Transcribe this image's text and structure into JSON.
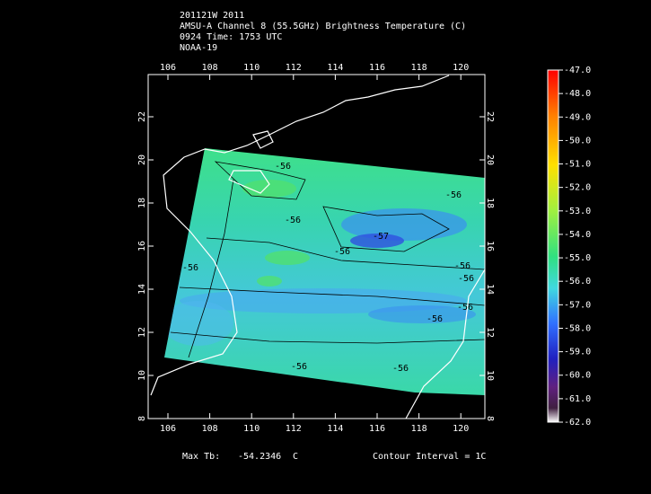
{
  "header": {
    "lines": [
      "201121W 2011",
      "AMSU-A Channel 8 (55.5GHz) Brightness Temperature (C)",
      "0924 Time: 1753 UTC",
      "NOAA-19"
    ]
  },
  "map": {
    "lon_ticks": [
      106,
      108,
      110,
      112,
      114,
      116,
      118,
      120
    ],
    "lat_ticks": [
      8,
      10,
      12,
      14,
      16,
      18,
      20,
      22
    ],
    "contour_labels": [
      "-56",
      "-56",
      "-56",
      "-57",
      "-56",
      "-56",
      "-56",
      "-56",
      "-56",
      "-56",
      "-56",
      "-56"
    ]
  },
  "colorbar": {
    "labels": [
      "-47.0",
      "-48.0",
      "-49.0",
      "-50.0",
      "-51.0",
      "-52.0",
      "-53.0",
      "-54.0",
      "-55.0",
      "-56.0",
      "-57.0",
      "-58.0",
      "-59.0",
      "-60.0",
      "-61.0",
      "-62.0"
    ]
  },
  "footer": {
    "max_label": "Max Tb:",
    "max_value": "-54.2346",
    "unit": "C",
    "contour_interval": "Contour Interval = 1C"
  }
}
